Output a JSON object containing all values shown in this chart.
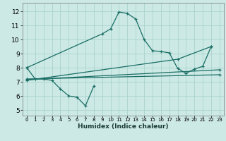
{
  "xlabel": "Humidex (Indice chaleur)",
  "xlim": [
    -0.5,
    23.5
  ],
  "ylim": [
    4.6,
    12.6
  ],
  "yticks": [
    5,
    6,
    7,
    8,
    9,
    10,
    11,
    12
  ],
  "xticks": [
    0,
    1,
    2,
    3,
    4,
    5,
    6,
    7,
    8,
    9,
    10,
    11,
    12,
    13,
    14,
    15,
    16,
    17,
    18,
    19,
    20,
    21,
    22,
    23
  ],
  "bg_color": "#cce9e5",
  "grid_color": "#aad3ce",
  "line_color": "#1a6e65",
  "lines": [
    {
      "x": [
        0,
        1,
        2,
        3,
        4,
        5,
        6,
        7,
        8
      ],
      "y": [
        8.0,
        7.2,
        7.2,
        7.1,
        6.5,
        6.0,
        5.9,
        5.3,
        6.7
      ]
    },
    {
      "x": [
        0,
        9,
        10,
        11,
        12,
        13,
        14,
        15,
        16,
        17,
        18,
        19,
        20,
        21,
        22
      ],
      "y": [
        8.0,
        10.4,
        10.75,
        11.95,
        11.85,
        11.45,
        10.0,
        9.2,
        9.15,
        9.05,
        7.95,
        7.6,
        7.9,
        8.1,
        9.5
      ]
    },
    {
      "x": [
        0,
        23
      ],
      "y": [
        7.2,
        7.5
      ]
    },
    {
      "x": [
        0,
        23
      ],
      "y": [
        7.15,
        7.85
      ]
    },
    {
      "x": [
        0,
        18,
        22
      ],
      "y": [
        7.1,
        8.6,
        9.5
      ]
    }
  ]
}
